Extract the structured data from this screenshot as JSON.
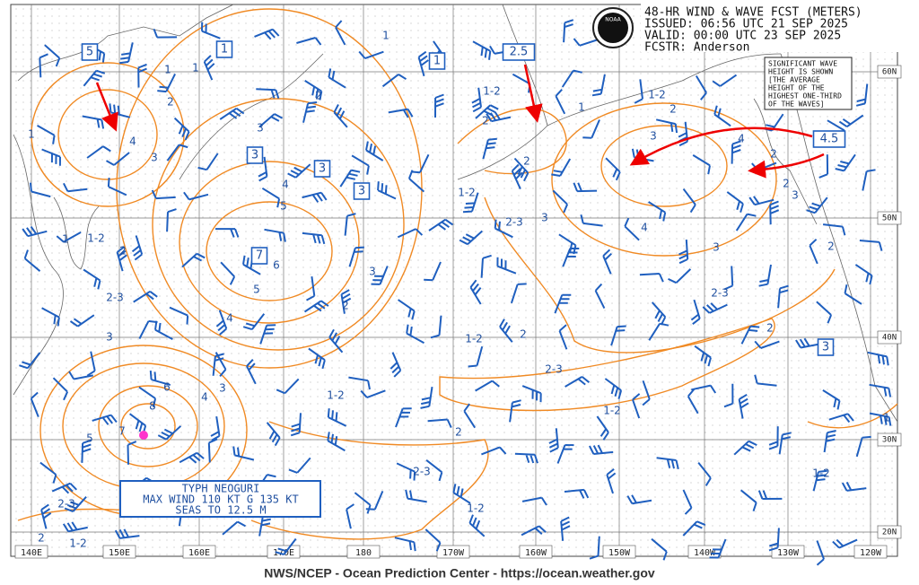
{
  "header": {
    "logo": "NOAA",
    "lines": [
      "48-HR WIND & WAVE FCST (METERS)",
      "ISSUED: 06:56 UTC 21 SEP 2025",
      "VALID:  00:00 UTC 23 SEP 2025",
      "FCSTR:  Anderson"
    ]
  },
  "note": [
    "SIGNIFICANT WAVE",
    "HEIGHT IS SHOWN",
    "[THE AVERAGE",
    "HEIGHT OF THE",
    "HIGHEST ONE-THIRD",
    "OF THE WAVES]"
  ],
  "storm": [
    "TYPH NEOGURI",
    "MAX WIND 110 KT G 135 KT",
    "SEAS TO 12.5 M"
  ],
  "boxed_labels": [
    "5",
    "1",
    "1",
    "2.5",
    "3",
    "3",
    "3",
    "7",
    "4.5",
    "3"
  ],
  "contour_labels": [
    "1",
    "1",
    "1",
    "2",
    "1",
    "4",
    "3",
    "2",
    "3",
    "4",
    "5",
    "6",
    "5",
    "4",
    "2",
    "3",
    "3",
    "2",
    "1-2",
    "1",
    "2-3",
    "1-2",
    "2",
    "1-2",
    "2-3",
    "3",
    "2",
    "1-2",
    "2",
    "1",
    "3",
    "4",
    "4",
    "2",
    "3",
    "2",
    "2",
    "3",
    "2-3",
    "2",
    "1-2",
    "2",
    "2-3",
    "1-2",
    "1-2",
    "2",
    "2-3",
    "1-2",
    "1-2",
    "1",
    "6",
    "8",
    "7",
    "5",
    "4",
    "3",
    "2-3",
    "2",
    "1-2"
  ],
  "lon_labels": [
    "140E",
    "150E",
    "160E",
    "170E",
    "180",
    "170W",
    "160W",
    "150W",
    "140W",
    "130W",
    "120W"
  ],
  "lat_labels": [
    "60N",
    "50N",
    "40N",
    "30N",
    "20N"
  ],
  "footer": "NWS/NCEP - Ocean Prediction Center - https://ocean.weather.gov"
}
